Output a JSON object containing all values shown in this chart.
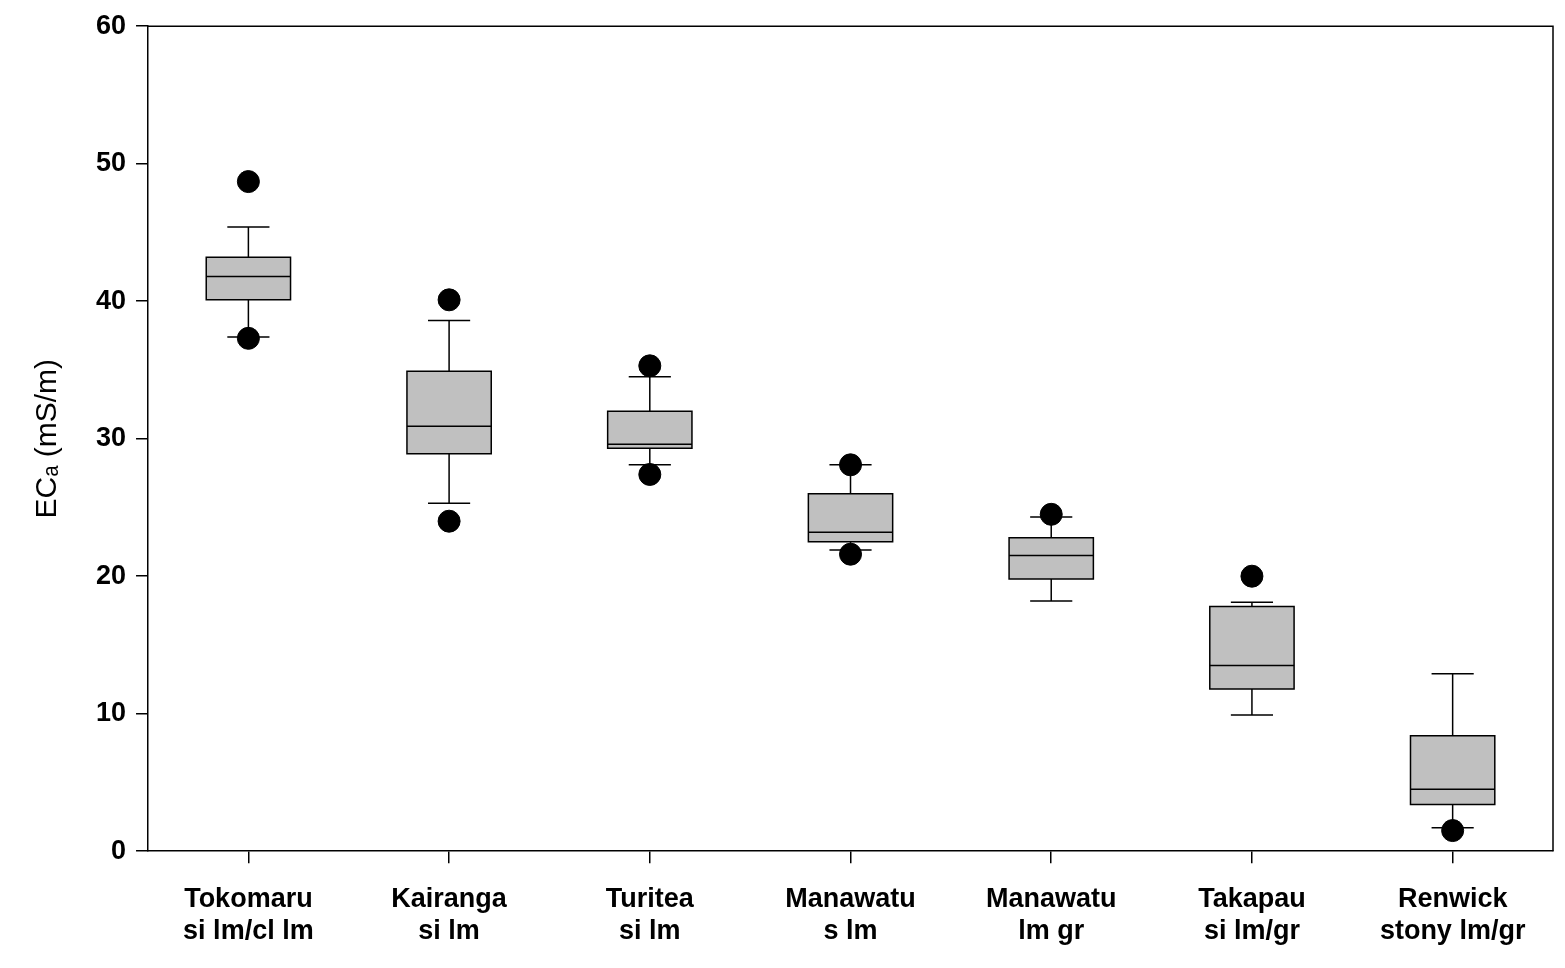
{
  "chart_data": {
    "type": "box",
    "ylabel": "ECₐ (mS/m)",
    "categories": [
      "Tokomaru\nsi lm/cl lm",
      "Kairanga\nsi lm",
      "Turitea\nsi lm",
      "Manawatu\ns lm",
      "Manawatu\nlm gr",
      "Takapau\nsi lm/gr",
      "Renwick\nstony lm/gr"
    ],
    "color": "#c0c0c0",
    "boxes": [
      {
        "low": 37.4,
        "q1": 40.1,
        "median": 41.8,
        "q3": 43.2,
        "high": 45.4,
        "outliers": [
          48.7,
          37.3
        ]
      },
      {
        "low": 25.3,
        "q1": 28.9,
        "median": 30.9,
        "q3": 34.9,
        "high": 38.6,
        "outliers": [
          40.1,
          24.0
        ]
      },
      {
        "low": 28.1,
        "q1": 29.3,
        "median": 29.6,
        "q3": 32.0,
        "high": 34.5,
        "outliers": [
          35.3,
          27.4
        ]
      },
      {
        "low": 21.9,
        "q1": 22.5,
        "median": 23.2,
        "q3": 26.0,
        "high": 28.1,
        "outliers": [
          28.1,
          21.6
        ]
      },
      {
        "low": 18.2,
        "q1": 19.8,
        "median": 21.5,
        "q3": 22.8,
        "high": 24.3,
        "outliers": [
          24.5
        ]
      },
      {
        "low": 9.9,
        "q1": 11.8,
        "median": 13.5,
        "q3": 17.8,
        "high": 18.1,
        "outliers": [
          20.0
        ]
      },
      {
        "low": 1.7,
        "q1": 3.4,
        "median": 4.5,
        "q3": 8.4,
        "high": 12.9,
        "outliers": [
          1.5
        ]
      }
    ],
    "ylim": [
      0,
      60
    ],
    "yticks": [
      0,
      10,
      20,
      30,
      40,
      50,
      60
    ],
    "grid": false,
    "legend": false
  }
}
